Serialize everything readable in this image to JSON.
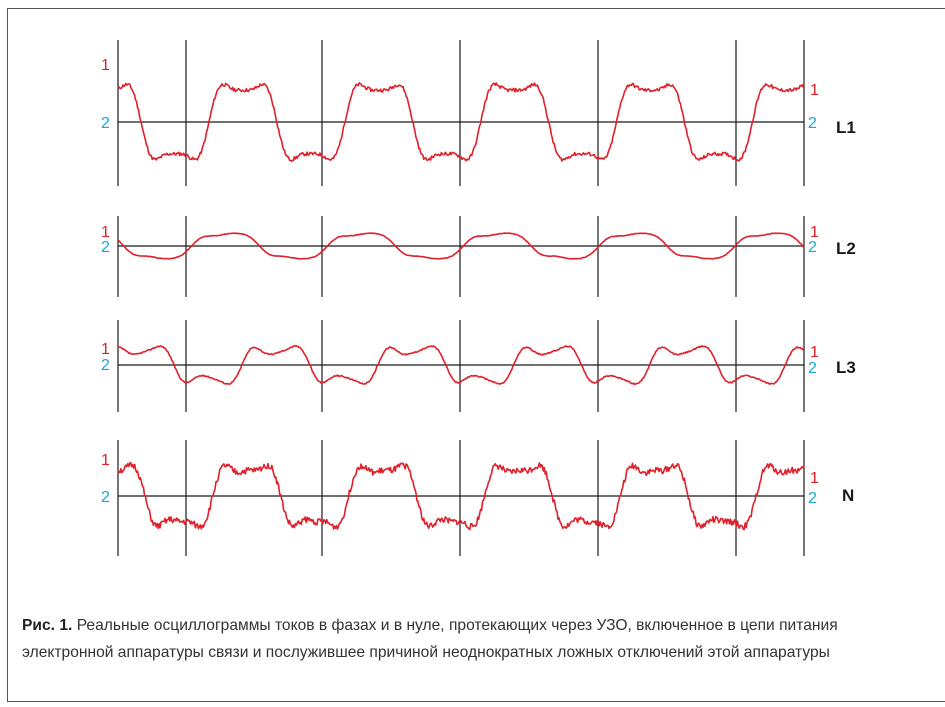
{
  "figure": {
    "caption_label": "Рис. 1.",
    "caption_text": "Реальные осциллограммы токов в фазах и в нуле, протекающих через УЗО, включенное в цепи питания электронной аппаратуры связи и послужившее причиной неоднократных ложных отключений этой аппаратуры"
  },
  "colors": {
    "trace": "#e0202a",
    "marker1": "#e0202a",
    "marker2": "#1aa7d6",
    "axis": "#1a1a1a",
    "label": "#1a1a1a"
  },
  "chart_data": [
    {
      "type": "line",
      "name": "L1",
      "marker_left_1": "1",
      "marker_left_2": "2",
      "marker_right_1": "1",
      "marker_right_2": "2",
      "x_period_units": [
        "0",
        "1",
        "2",
        "3",
        "4",
        "5",
        "6"
      ],
      "waveform": {
        "cycles": 5.05,
        "phase": 0.33,
        "amplitude": 1.0,
        "h3": 0.32,
        "h5": 0.08,
        "h3_phase": 0.0,
        "noise": 0.07,
        "seed": 11
      }
    },
    {
      "type": "line",
      "name": "L2",
      "marker_left_1": "1",
      "marker_left_2": "2",
      "marker_right_1": "1",
      "marker_right_2": "2",
      "waveform": {
        "cycles": 5.05,
        "phase": 0.45,
        "amplitude": 0.95,
        "h3": 0.18,
        "h5": 0.04,
        "h3_phase": 0.5,
        "noise": 0.03,
        "seed": 23
      }
    },
    {
      "type": "line",
      "name": "L3",
      "marker_left_1": "1",
      "marker_left_2": "2",
      "marker_right_1": "1",
      "marker_right_2": "2",
      "waveform": {
        "cycles": 5.05,
        "phase": 0.08,
        "amplitude": 0.95,
        "h3": 0.45,
        "h5": 0.1,
        "h3_phase": 0.3,
        "noise": 0.05,
        "seed": 37
      }
    },
    {
      "type": "line",
      "name": "N",
      "marker_left_1": "1",
      "marker_left_2": "2",
      "marker_right_1": "1",
      "marker_right_2": "2",
      "waveform": {
        "cycles": 5.05,
        "phase": 0.3,
        "amplitude": 1.0,
        "h3": 0.35,
        "h5": 0.12,
        "h3_phase": 0.1,
        "noise": 0.16,
        "seed": 51
      }
    }
  ]
}
